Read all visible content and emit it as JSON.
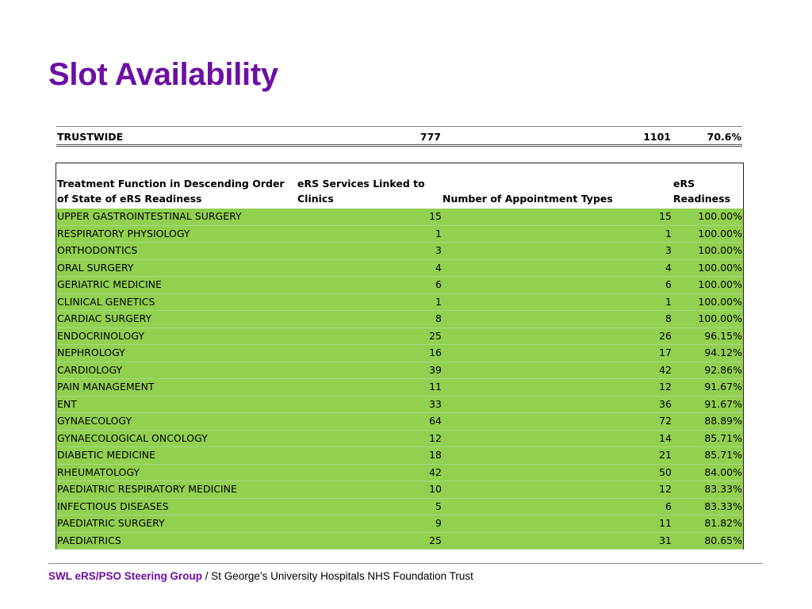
{
  "title": "Slot Availability",
  "summary": {
    "label": "TRUSTWIDE",
    "linked": "777",
    "types": "1101",
    "readiness": "70.6%"
  },
  "table": {
    "headers": {
      "function": "Treatment Function in Descending Order of State of eRS Readiness",
      "linked": "eRS Services Linked to Clinics",
      "types": "Number of Appointment Types",
      "readiness": "eRS Readiness"
    },
    "row_color": "#92d050",
    "rows": [
      {
        "name": "UPPER GASTROINTESTINAL SURGERY",
        "linked": "15",
        "types": "15",
        "readiness": "100.00%"
      },
      {
        "name": "RESPIRATORY PHYSIOLOGY",
        "linked": "1",
        "types": "1",
        "readiness": "100.00%"
      },
      {
        "name": "ORTHODONTICS",
        "linked": "3",
        "types": "3",
        "readiness": "100.00%"
      },
      {
        "name": "ORAL SURGERY",
        "linked": "4",
        "types": "4",
        "readiness": "100.00%"
      },
      {
        "name": "GERIATRIC MEDICINE",
        "linked": "6",
        "types": "6",
        "readiness": "100.00%"
      },
      {
        "name": "CLINICAL GENETICS",
        "linked": "1",
        "types": "1",
        "readiness": "100.00%"
      },
      {
        "name": "CARDIAC SURGERY",
        "linked": "8",
        "types": "8",
        "readiness": "100.00%"
      },
      {
        "name": "ENDOCRINOLOGY",
        "linked": "25",
        "types": "26",
        "readiness": "96.15%"
      },
      {
        "name": "NEPHROLOGY",
        "linked": "16",
        "types": "17",
        "readiness": "94.12%"
      },
      {
        "name": "CARDIOLOGY",
        "linked": "39",
        "types": "42",
        "readiness": "92.86%"
      },
      {
        "name": "PAIN MANAGEMENT",
        "linked": "11",
        "types": "12",
        "readiness": "91.67%"
      },
      {
        "name": "ENT",
        "linked": "33",
        "types": "36",
        "readiness": "91.67%"
      },
      {
        "name": "GYNAECOLOGY",
        "linked": "64",
        "types": "72",
        "readiness": "88.89%"
      },
      {
        "name": "GYNAECOLOGICAL ONCOLOGY",
        "linked": "12",
        "types": "14",
        "readiness": "85.71%"
      },
      {
        "name": "DIABETIC MEDICINE",
        "linked": "18",
        "types": "21",
        "readiness": "85.71%"
      },
      {
        "name": "RHEUMATOLOGY",
        "linked": "42",
        "types": "50",
        "readiness": "84.00%"
      },
      {
        "name": "PAEDIATRIC RESPIRATORY MEDICINE",
        "linked": "10",
        "types": "12",
        "readiness": "83.33%"
      },
      {
        "name": "INFECTIOUS DISEASES",
        "linked": "5",
        "types": "6",
        "readiness": "83.33%"
      },
      {
        "name": "PAEDIATRIC SURGERY",
        "linked": "9",
        "types": "11",
        "readiness": "81.82%"
      },
      {
        "name": "PAEDIATRICS",
        "linked": "25",
        "types": "31",
        "readiness": "80.65%"
      }
    ]
  },
  "footer": {
    "org": "SWL eRS/PSO Steering Group",
    "text": "/ St George’s University Hospitals NHS Foundation Trust"
  },
  "colors": {
    "title": "#6c0fa3",
    "footer_org": "#6c0fa3"
  }
}
